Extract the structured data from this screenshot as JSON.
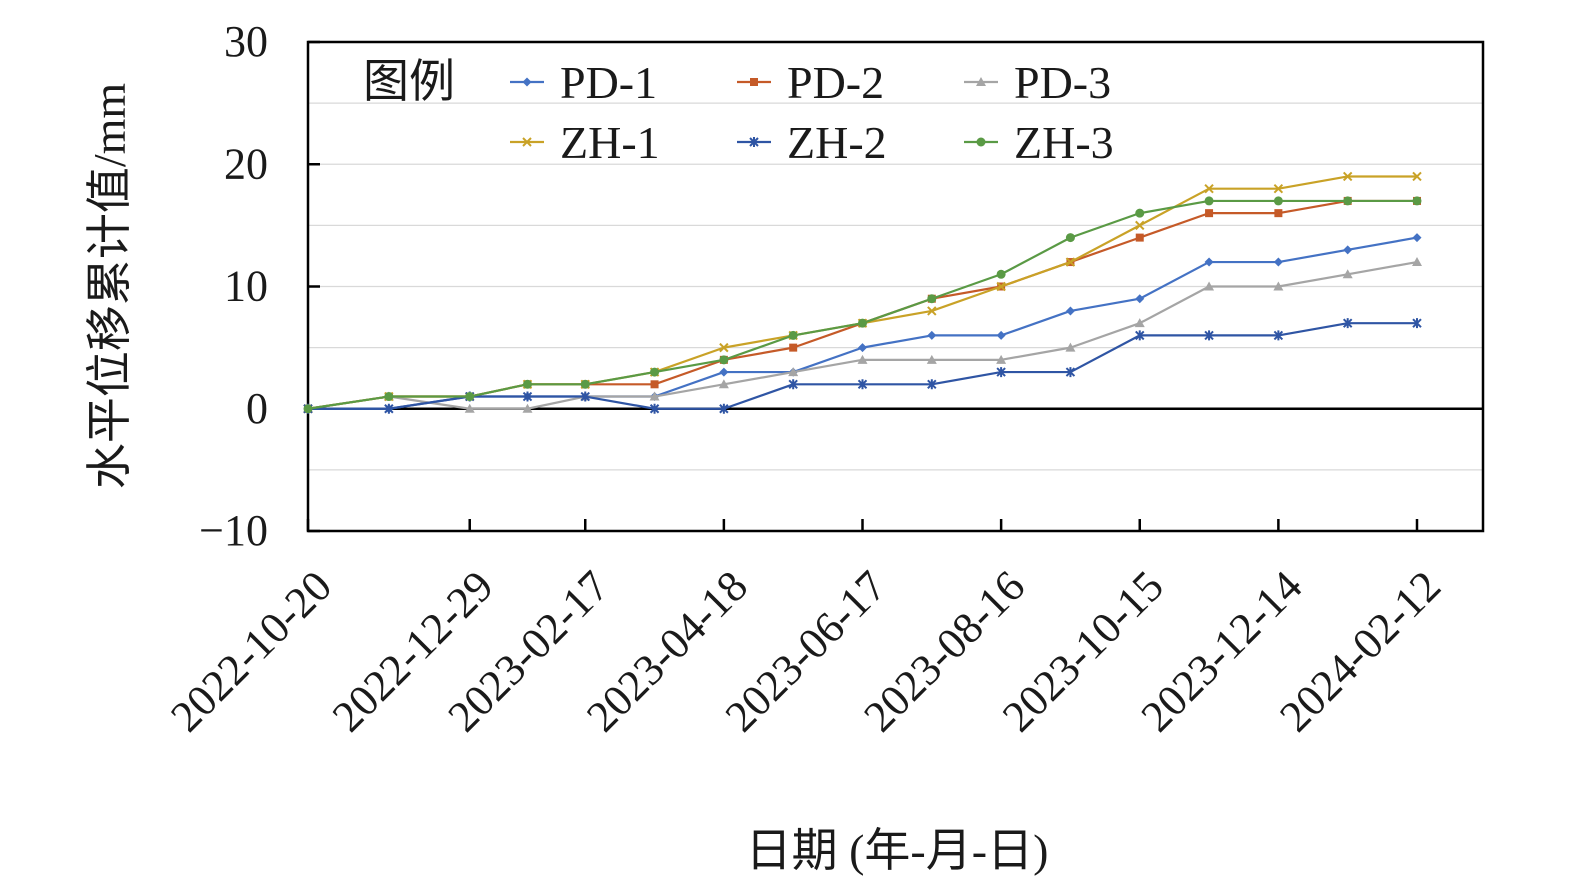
{
  "chart_data": {
    "type": "line",
    "title": "",
    "xlabel": "日期 (年-月-日)",
    "ylabel": "水平位移累计值/mm",
    "ylim": [
      -10,
      30
    ],
    "yticks": [
      -10,
      0,
      10,
      20,
      30
    ],
    "x_tick_labels": [
      "2022-10-20",
      "2022-12-29",
      "2023-02-17",
      "2023-04-18",
      "2023-06-17",
      "2023-08-16",
      "2023-10-15",
      "2023-12-14",
      "2024-02-12"
    ],
    "x": [
      "2022-10-20",
      "2022-11-24",
      "2022-12-29",
      "2023-01-23",
      "2023-02-17",
      "2023-03-19",
      "2023-04-18",
      "2023-05-18",
      "2023-06-17",
      "2023-07-17",
      "2023-08-16",
      "2023-09-15",
      "2023-10-15",
      "2023-11-14",
      "2023-12-14",
      "2024-01-13",
      "2024-02-12"
    ],
    "grid": true,
    "legend_title": "图例",
    "legend_position": "top-left",
    "series": [
      {
        "name": "PD-1",
        "color": "#4472C4",
        "marker": "diamond",
        "values": [
          0,
          0,
          1,
          1,
          1,
          1,
          3,
          3,
          5,
          6,
          6,
          8,
          9,
          12,
          12,
          13,
          14
        ]
      },
      {
        "name": "PD-2",
        "color": "#C55A28",
        "marker": "square",
        "values": [
          0,
          1,
          1,
          2,
          2,
          2,
          4,
          5,
          7,
          9,
          10,
          12,
          14,
          16,
          16,
          17,
          17
        ]
      },
      {
        "name": "PD-3",
        "color": "#A5A5A5",
        "marker": "triangle",
        "values": [
          0,
          1,
          0,
          0,
          1,
          1,
          2,
          3,
          4,
          4,
          4,
          5,
          7,
          10,
          10,
          11,
          12
        ]
      },
      {
        "name": "ZH-1",
        "color": "#C9A227",
        "marker": "x",
        "values": [
          0,
          1,
          1,
          2,
          2,
          3,
          5,
          6,
          7,
          8,
          10,
          12,
          15,
          18,
          18,
          19,
          19
        ]
      },
      {
        "name": "ZH-2",
        "color": "#2F55A4",
        "marker": "star",
        "values": [
          0,
          0,
          1,
          1,
          1,
          0,
          0,
          2,
          2,
          2,
          3,
          3,
          6,
          6,
          6,
          7,
          7
        ]
      },
      {
        "name": "ZH-3",
        "color": "#5A9A45",
        "marker": "circle",
        "values": [
          0,
          1,
          1,
          2,
          2,
          3,
          4,
          6,
          7,
          9,
          11,
          14,
          16,
          17,
          17,
          17,
          17
        ]
      }
    ]
  }
}
